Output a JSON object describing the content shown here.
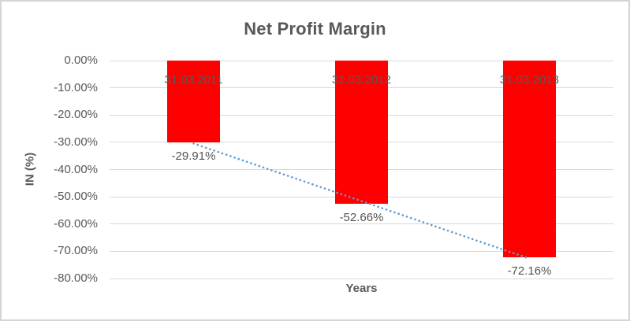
{
  "chart": {
    "title": "Net Profit Margin",
    "y_axis_title": "IN (%)",
    "x_axis_title": "Years",
    "colors": {
      "bar": "#ff0000",
      "trendline": "#5b9bd5",
      "gridline": "#d9d9d9",
      "text": "#595959",
      "frame_border": "#d6d4d4"
    }
  },
  "chart_data": {
    "type": "bar",
    "title": "Net Profit Margin",
    "xlabel": "Years",
    "ylabel": "IN (%)",
    "categories": [
      "31.03.2011",
      "31.03.2012",
      "31.03.2013"
    ],
    "values": [
      -29.91,
      -52.66,
      -72.16
    ],
    "data_labels": [
      "-29.91%",
      "-52.66%",
      "-72.16%"
    ],
    "y_ticks": [
      "0.00%",
      "-10.00%",
      "-20.00%",
      "-30.00%",
      "-40.00%",
      "-50.00%",
      "-60.00%",
      "-70.00%",
      "-80.00%"
    ],
    "ylim": [
      -80,
      0
    ],
    "grid": true,
    "legend": false,
    "trendline": {
      "type": "linear",
      "style": "dotted",
      "color": "#5b9bd5"
    }
  }
}
